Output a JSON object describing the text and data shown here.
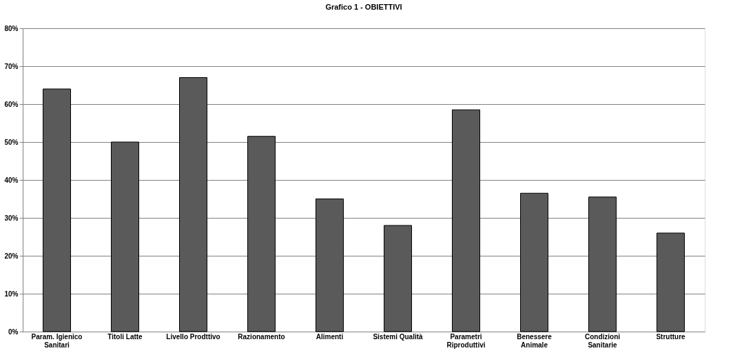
{
  "chart_data": {
    "type": "bar",
    "title": "Grafico 1 - OBIETTIVI",
    "categories": [
      "Param. Igienico\nSanitari",
      "Titoli Latte",
      "Livello Prodttivo",
      "Razionamento",
      "Alimenti",
      "Sistemi Qualità",
      "Parametri\nRiproduttivi",
      "Benessere\nAnimale",
      "Condizioni\nSanitarie",
      "Strutture"
    ],
    "values": [
      64,
      50,
      67,
      51.5,
      35,
      28,
      58.5,
      36.5,
      35.5,
      26
    ],
    "color": "#5a5a5a",
    "ylim": [
      0,
      80
    ],
    "yticks": [
      {
        "value": 0,
        "label": "0%"
      },
      {
        "value": 10,
        "label": "10%"
      },
      {
        "value": 20,
        "label": "20%"
      },
      {
        "value": 30,
        "label": "30%"
      },
      {
        "value": 40,
        "label": "40%"
      },
      {
        "value": 50,
        "label": "50%"
      },
      {
        "value": 60,
        "label": "60%"
      },
      {
        "value": 70,
        "label": "70%"
      },
      {
        "value": 80,
        "label": "80%"
      }
    ],
    "grid": "y"
  }
}
